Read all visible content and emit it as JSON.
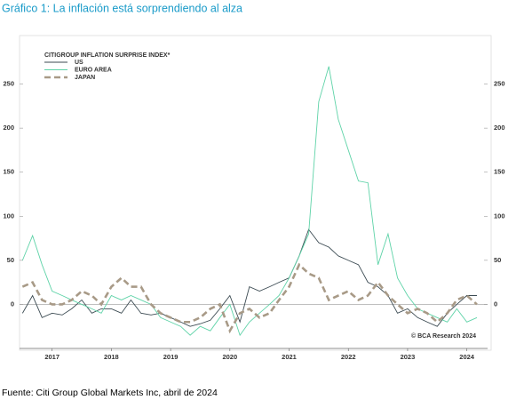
{
  "title": "Gráfico 1: La inflación está sorprendiendo al alza",
  "source": "Fuente: Citi Group Global Markets Inc, abril de 2024",
  "chart_data": {
    "type": "line",
    "legend_title": "CITIGROUP INFLATION SURPRISE INDEX*",
    "annotation": "© BCA Research 2024",
    "x": [
      2016.5,
      2016.67,
      2016.83,
      2017.0,
      2017.17,
      2017.33,
      2017.5,
      2017.67,
      2017.83,
      2018.0,
      2018.17,
      2018.33,
      2018.5,
      2018.67,
      2018.83,
      2019.0,
      2019.17,
      2019.33,
      2019.5,
      2019.67,
      2019.83,
      2020.0,
      2020.17,
      2020.33,
      2020.5,
      2020.67,
      2020.83,
      2021.0,
      2021.17,
      2021.33,
      2021.5,
      2021.67,
      2021.83,
      2022.0,
      2022.17,
      2022.33,
      2022.5,
      2022.67,
      2022.83,
      2023.0,
      2023.17,
      2023.33,
      2023.5,
      2023.67,
      2023.83,
      2024.0,
      2024.17
    ],
    "series": [
      {
        "name": "US",
        "color": "#3b4a52",
        "dash": false,
        "values": [
          -10,
          10,
          -15,
          -10,
          -12,
          -5,
          5,
          -10,
          -5,
          -5,
          -10,
          5,
          -10,
          -12,
          -10,
          -15,
          -20,
          -25,
          -22,
          -18,
          -5,
          10,
          -20,
          20,
          15,
          20,
          25,
          30,
          55,
          85,
          70,
          65,
          55,
          50,
          45,
          25,
          20,
          10,
          -10,
          -5,
          -15,
          -20,
          -25,
          -10,
          0,
          10,
          10
        ]
      },
      {
        "name": "EURO AREA",
        "color": "#5fd3a8",
        "dash": false,
        "values": [
          50,
          78,
          45,
          15,
          10,
          5,
          0,
          -5,
          -10,
          10,
          5,
          10,
          5,
          0,
          -15,
          -20,
          -25,
          -35,
          -25,
          -30,
          -15,
          0,
          -35,
          -20,
          -10,
          0,
          10,
          30,
          55,
          80,
          230,
          270,
          210,
          175,
          140,
          138,
          45,
          80,
          30,
          10,
          -5,
          -10,
          -15,
          -20,
          -5,
          -20,
          -15
        ]
      },
      {
        "name": "JAPAN",
        "color": "#a89a87",
        "dash": true,
        "values": [
          20,
          25,
          5,
          0,
          0,
          5,
          15,
          10,
          0,
          20,
          30,
          20,
          20,
          0,
          -10,
          -15,
          -20,
          -20,
          -15,
          -5,
          0,
          -30,
          -10,
          -5,
          -15,
          -10,
          5,
          20,
          45,
          35,
          30,
          5,
          10,
          15,
          5,
          10,
          25,
          10,
          0,
          -10,
          -5,
          -10,
          -20,
          -10,
          5,
          10,
          0
        ]
      }
    ],
    "xlim": [
      2016.45,
      2024.35
    ],
    "xticks": [
      2017,
      2018,
      2019,
      2020,
      2021,
      2022,
      2023,
      2024
    ],
    "ylim": [
      -50,
      300
    ],
    "yticks": [
      0,
      50,
      100,
      150,
      200,
      250
    ],
    "grid": false
  }
}
